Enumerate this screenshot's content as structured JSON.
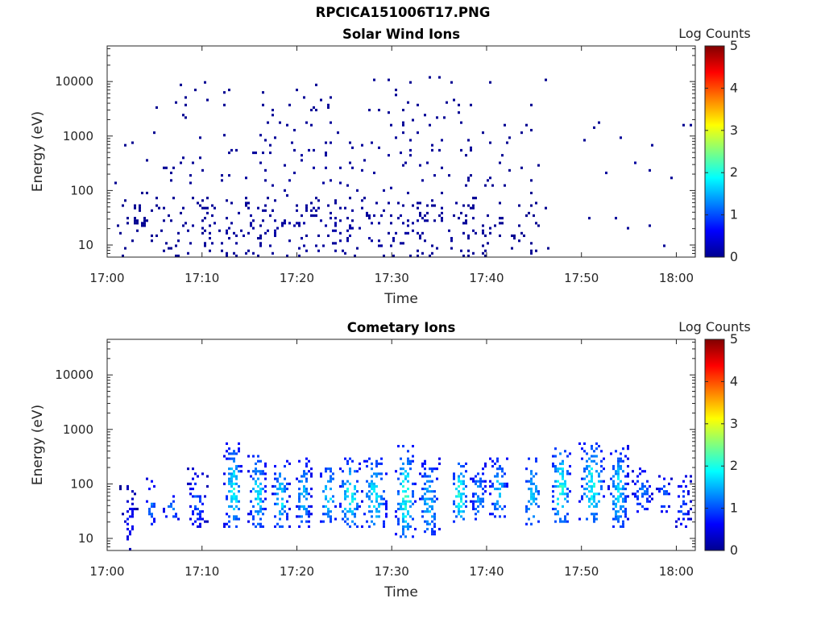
{
  "figure": {
    "title": "RPCICA151006T17.PNG"
  },
  "colormap": [
    "#00008f",
    "#0000ff",
    "#0080ff",
    "#00ffff",
    "#80ff80",
    "#ffff00",
    "#ff8000",
    "#ff0000",
    "#800000"
  ],
  "chart_data": [
    {
      "type": "heatmap",
      "title": "Solar Wind Ions",
      "xlabel": "Time",
      "ylabel": "Energy (eV)",
      "x_ticks": [
        "17:00",
        "17:10",
        "17:20",
        "17:30",
        "17:40",
        "17:50",
        "18:00"
      ],
      "y_ticks": [
        "10",
        "100",
        "1000",
        "10000"
      ],
      "x_range": [
        "17:00",
        "18:02"
      ],
      "y_range": [
        6,
        45000
      ],
      "y_scale": "log",
      "colorbar": {
        "label": "Log Counts",
        "ticks": [
          "0",
          "1",
          "2",
          "3",
          "4",
          "5"
        ],
        "range": [
          0,
          5
        ]
      },
      "blobs": [
        [
          1.0,
          46.5,
          6,
          12000,
          0.03,
          0.0,
          0.1
        ],
        [
          1.0,
          46.5,
          6,
          80,
          0.1,
          0.0,
          0.15
        ],
        [
          47.5,
          62.0,
          6,
          3000,
          0.006,
          0.0,
          0.1
        ]
      ]
    },
    {
      "type": "heatmap",
      "title": "Cometary Ions",
      "xlabel": "Time",
      "ylabel": "Energy (eV)",
      "x_ticks": [
        "17:00",
        "17:10",
        "17:20",
        "17:30",
        "17:40",
        "17:50",
        "18:00"
      ],
      "y_ticks": [
        "10",
        "100",
        "1000",
        "10000"
      ],
      "x_range": [
        "17:00",
        "18:02"
      ],
      "y_range": [
        6,
        45000
      ],
      "y_scale": "log",
      "colorbar": {
        "label": "Log Counts",
        "ticks": [
          "0",
          "1",
          "2",
          "3",
          "4",
          "5"
        ],
        "range": [
          0,
          5
        ]
      },
      "blobs": [
        [
          1.5,
          3.2,
          6,
          100,
          0.25,
          0.0,
          0.8
        ],
        [
          4.0,
          5.3,
          15,
          150,
          0.3,
          0.3,
          1.3
        ],
        [
          6.0,
          7.5,
          20,
          60,
          0.25,
          0.5,
          1.6
        ],
        [
          8.5,
          10.5,
          15,
          200,
          0.3,
          0.2,
          1.2
        ],
        [
          12.5,
          14.2,
          15,
          600,
          0.5,
          0.5,
          2.2
        ],
        [
          15.0,
          16.8,
          15,
          400,
          0.45,
          0.5,
          2.0
        ],
        [
          17.5,
          19.2,
          15,
          300,
          0.45,
          0.5,
          2.0
        ],
        [
          20.0,
          21.5,
          15,
          300,
          0.45,
          0.5,
          1.8
        ],
        [
          22.5,
          24.2,
          20,
          250,
          0.45,
          0.6,
          2.0
        ],
        [
          24.5,
          26.8,
          15,
          300,
          0.45,
          0.5,
          2.2
        ],
        [
          27.0,
          29.5,
          15,
          300,
          0.45,
          0.6,
          2.0
        ],
        [
          30.5,
          32.5,
          10,
          500,
          0.5,
          0.6,
          2.3
        ],
        [
          33.0,
          35.0,
          10,
          300,
          0.45,
          0.5,
          1.8
        ],
        [
          36.5,
          38.0,
          20,
          250,
          0.5,
          0.7,
          2.3
        ],
        [
          38.5,
          40.0,
          20,
          250,
          0.45,
          0.5,
          1.6
        ],
        [
          40.5,
          42.2,
          25,
          300,
          0.45,
          0.6,
          1.8
        ],
        [
          44.0,
          45.8,
          15,
          300,
          0.45,
          0.6,
          1.9
        ],
        [
          47.0,
          48.8,
          20,
          500,
          0.5,
          0.7,
          2.3
        ],
        [
          50.0,
          52.5,
          20,
          600,
          0.5,
          0.6,
          2.2
        ],
        [
          53.0,
          55.0,
          15,
          500,
          0.5,
          0.5,
          2.0
        ],
        [
          55.5,
          57.5,
          30,
          200,
          0.35,
          0.4,
          1.4
        ],
        [
          58.0,
          59.5,
          30,
          150,
          0.3,
          0.3,
          1.3
        ],
        [
          60.0,
          61.5,
          15,
          150,
          0.3,
          0.3,
          1.2
        ]
      ]
    }
  ]
}
